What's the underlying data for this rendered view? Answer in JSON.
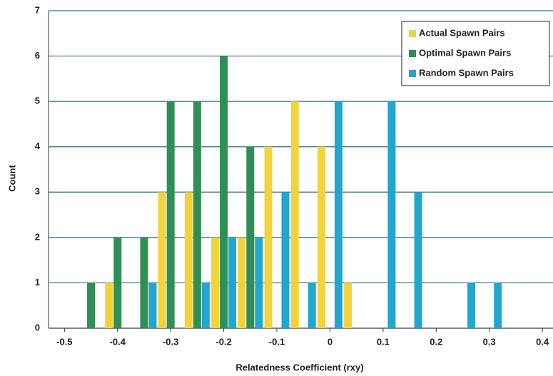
{
  "chart_data": {
    "type": "bar",
    "x_label": "Relatedness Coefficient (rxy)",
    "y_label": "Count",
    "x": [
      -0.45,
      -0.4,
      -0.35,
      -0.3,
      -0.25,
      -0.2,
      -0.15,
      -0.1,
      -0.05,
      0,
      0.05,
      0.1,
      0.15,
      0.2,
      0.25,
      0.3
    ],
    "series": [
      {
        "name": "Actual Spawn Pairs",
        "color": "#f3d33c",
        "values": [
          0,
          1,
          0,
          3,
          3,
          2,
          2,
          4,
          5,
          4,
          1,
          0,
          0,
          0,
          0,
          0
        ]
      },
      {
        "name": "Optimal Spawn Pairs",
        "color": "#2f8f55",
        "values": [
          1,
          2,
          2,
          5,
          5,
          6,
          4,
          0,
          0,
          0,
          0,
          0,
          0,
          0,
          0,
          0
        ]
      },
      {
        "name": "Random Spawn Pairs",
        "color": "#22a6cc",
        "values": [
          0,
          0,
          1,
          0,
          1,
          2,
          2,
          3,
          1,
          5,
          0,
          5,
          3,
          0,
          1,
          1
        ]
      }
    ],
    "xlim": [
      -0.53,
      0.42
    ],
    "xticks": [
      -0.5,
      -0.4,
      -0.3,
      -0.2,
      -0.1,
      0,
      0.1,
      0.2,
      0.3,
      0.4
    ],
    "ylim": [
      0,
      7
    ],
    "yticks": [
      0,
      1,
      2,
      3,
      4,
      5,
      6,
      7
    ],
    "grid": true,
    "legend": "upper right"
  }
}
